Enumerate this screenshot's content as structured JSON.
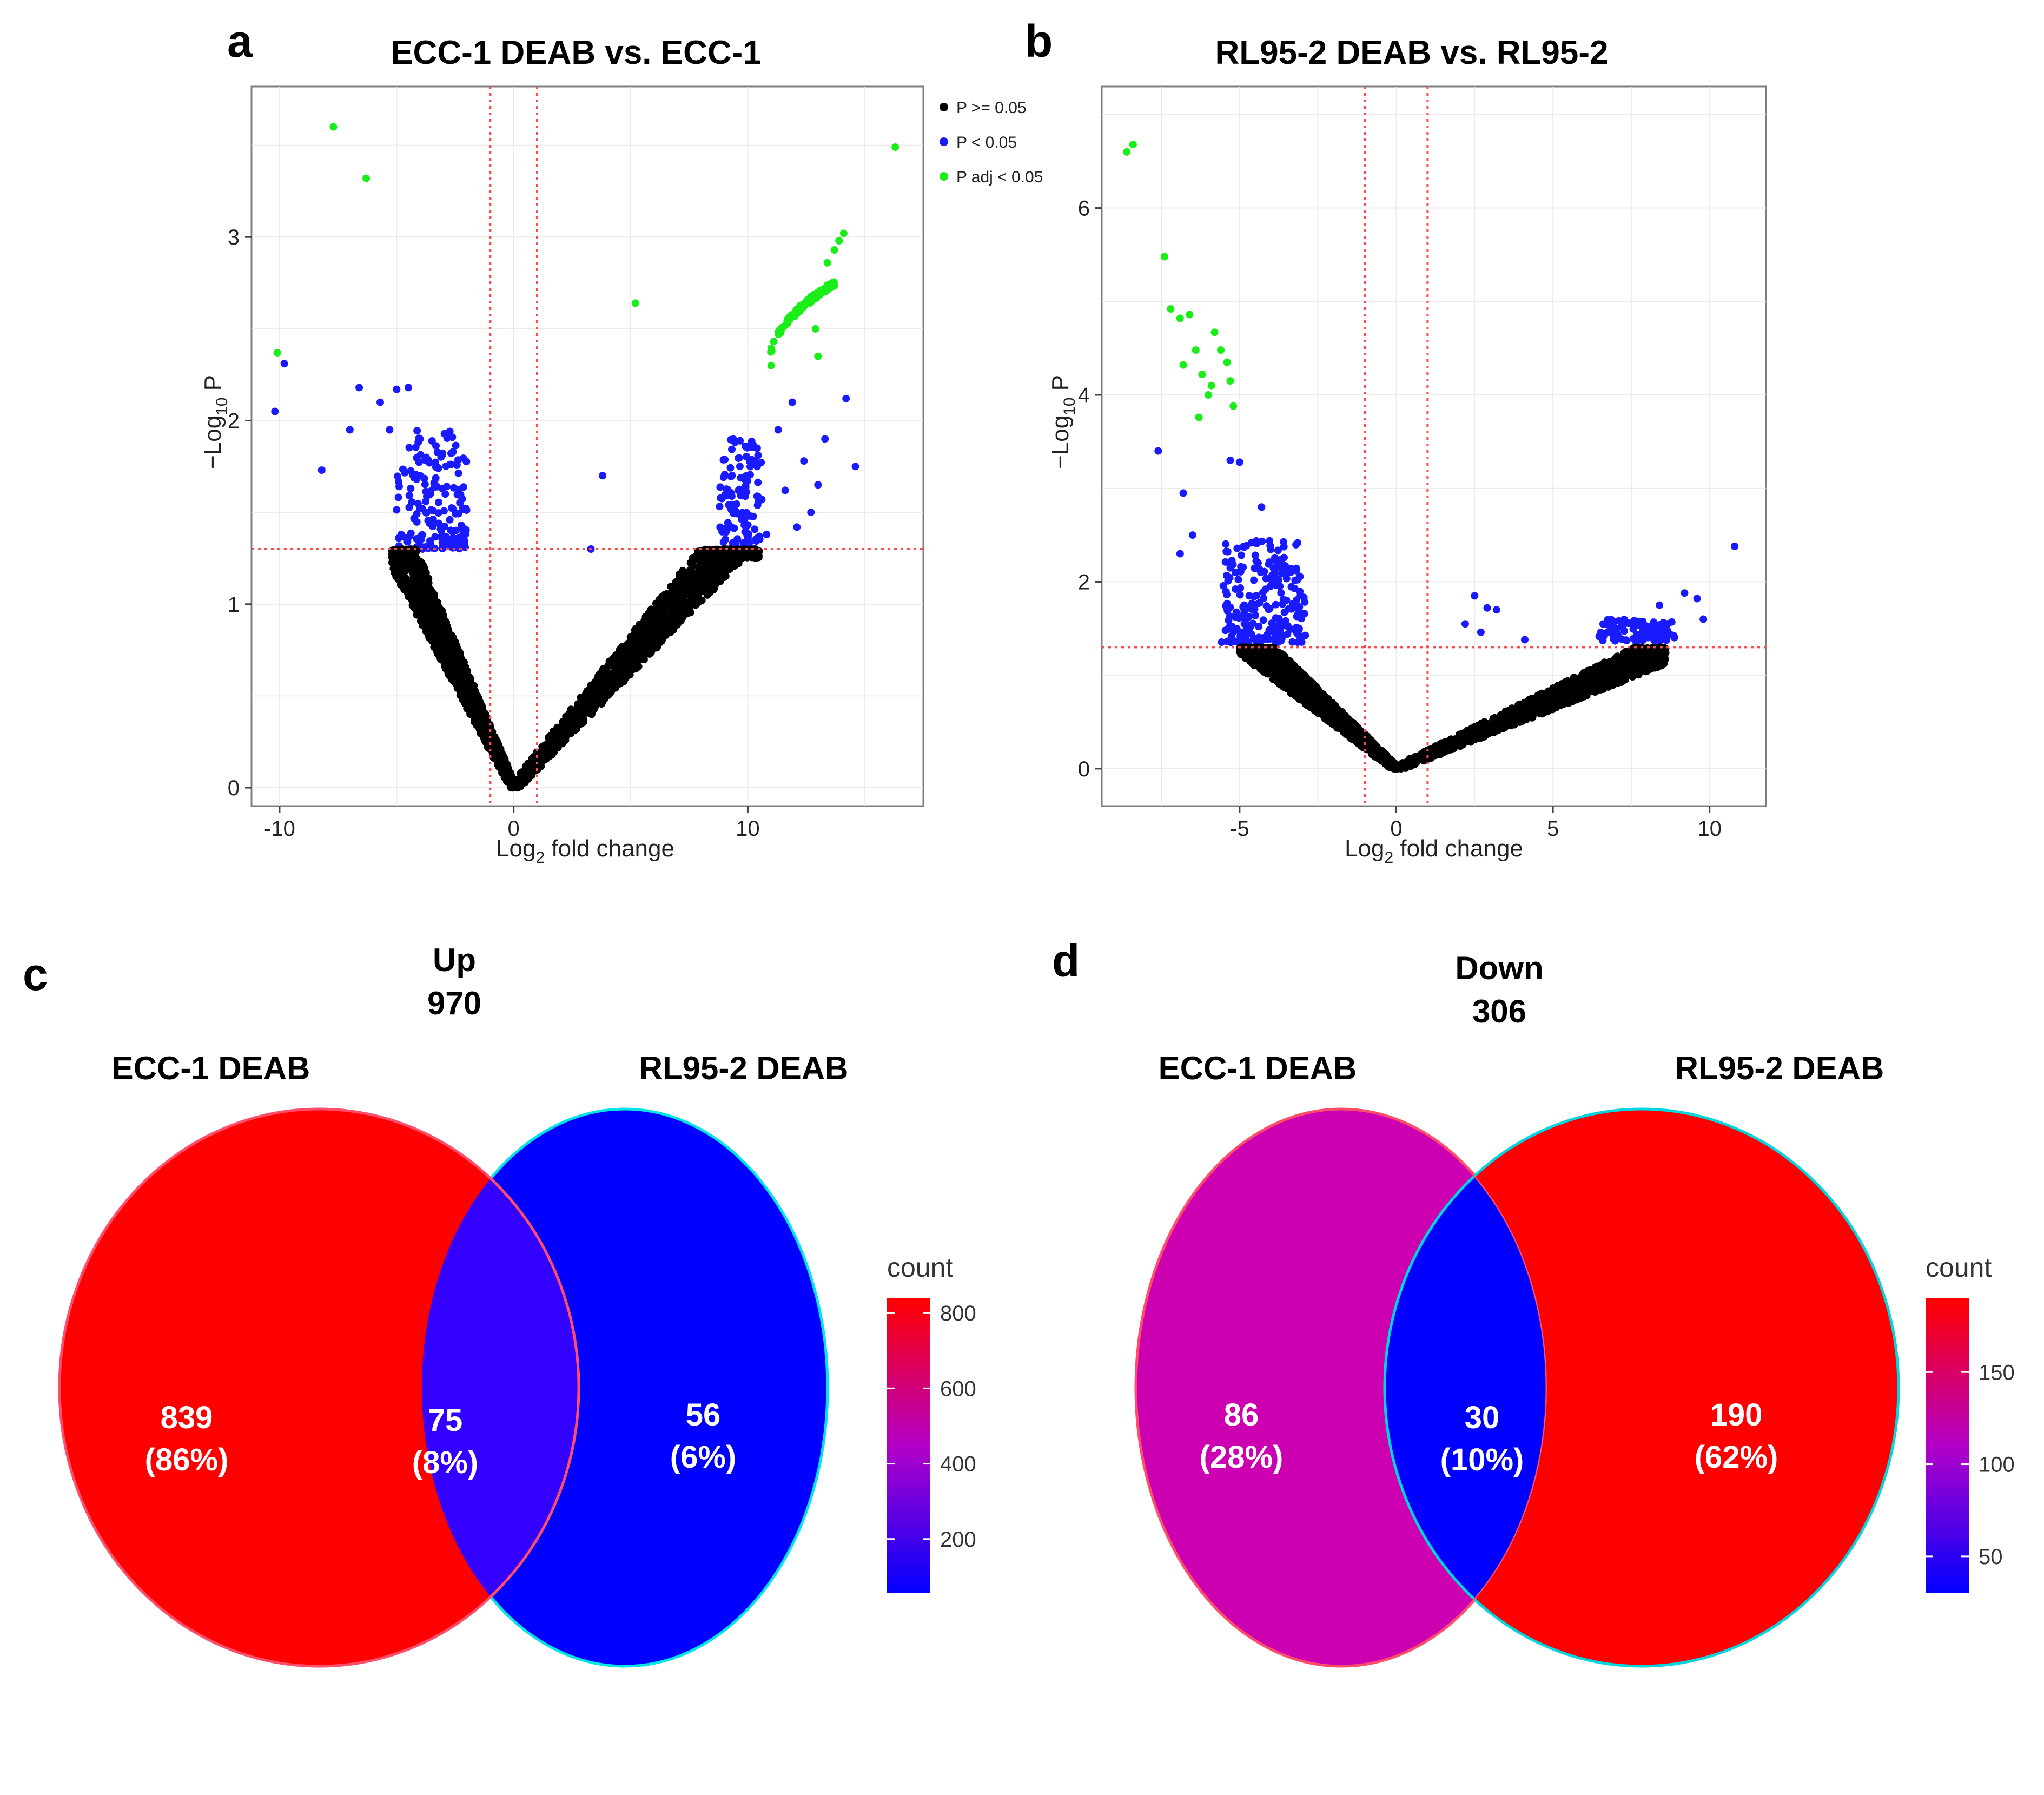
{
  "chart_data": [
    {
      "type": "scatter",
      "panel": "a",
      "title": "ECC-1 DEAB vs. ECC-1",
      "xlabel_main": "Log",
      "xlabel_sub": "2",
      "xlabel_rest": " fold change",
      "ylabel_main": "−Log",
      "ylabel_sub": "10",
      "ylabel_rest": " P",
      "xlim": [
        -11.2,
        17.5
      ],
      "ylim": [
        -0.1,
        3.82
      ],
      "xticks": [
        -10,
        0,
        10
      ],
      "yticks": [
        0,
        1,
        2,
        3
      ],
      "xtick_labels": [
        "-10",
        "0",
        "10"
      ],
      "ytick_labels": [
        "0",
        "1",
        "2",
        "3"
      ],
      "vlines": [
        -1,
        1
      ],
      "hline": 1.3,
      "legend": [
        {
          "label": "P >= 0.05",
          "color": "#000000"
        },
        {
          "label": "P < 0.05",
          "color": "#1a1aff"
        },
        {
          "label": "P adj < 0.05",
          "color": "#19ee19"
        }
      ],
      "points_sig_adj": [
        [
          -7.7,
          3.6
        ],
        [
          -6.3,
          3.32
        ],
        [
          -10.1,
          2.37
        ],
        [
          5.2,
          2.64
        ],
        [
          16.3,
          3.49
        ],
        [
          14.1,
          3.02
        ],
        [
          13.9,
          2.98
        ],
        [
          13.7,
          2.93
        ],
        [
          13.4,
          2.86
        ],
        [
          12.9,
          2.5
        ],
        [
          13.0,
          2.35
        ],
        [
          11.0,
          2.3
        ]
      ],
      "points_sig": [
        [
          -9.8,
          2.31
        ],
        [
          -10.2,
          2.05
        ],
        [
          -6.6,
          2.18
        ],
        [
          -5.7,
          2.1
        ],
        [
          -5.0,
          2.17
        ],
        [
          -4.5,
          2.18
        ],
        [
          -8.2,
          1.73
        ],
        [
          -5.3,
          1.95
        ],
        [
          -7.0,
          1.95
        ],
        [
          -4.0,
          1.9
        ],
        [
          -3.6,
          1.77
        ],
        [
          -4.4,
          1.63
        ],
        [
          -3.9,
          1.52
        ],
        [
          -3.2,
          1.44
        ],
        [
          -2.8,
          1.35
        ],
        [
          -4.8,
          1.38
        ],
        [
          -3.4,
          1.66
        ],
        [
          -2.6,
          1.52
        ],
        [
          3.8,
          1.7
        ],
        [
          3.3,
          1.3
        ],
        [
          9.9,
          1.86
        ],
        [
          10.4,
          1.75
        ],
        [
          9.6,
          1.62
        ],
        [
          10.1,
          1.48
        ],
        [
          9.3,
          1.42
        ],
        [
          10.6,
          1.57
        ],
        [
          11.3,
          1.95
        ],
        [
          11.9,
          2.1
        ],
        [
          12.4,
          1.78
        ],
        [
          13.0,
          1.65
        ],
        [
          13.3,
          1.9
        ],
        [
          14.2,
          2.12
        ],
        [
          14.6,
          1.75
        ],
        [
          12.7,
          1.5
        ],
        [
          11.6,
          1.62
        ],
        [
          12.1,
          1.42
        ],
        [
          10.8,
          1.38
        ]
      ],
      "clusters": [
        {
          "kind": "curve",
          "color": "#19ee19",
          "x0": 10.9,
          "x1": 13.7,
          "y0": 2.3,
          "y1": 2.75,
          "n": 120,
          "jitter": 0.03
        },
        {
          "kind": "band",
          "color": "#1a1aff",
          "x0": -5.0,
          "x1": -2.0,
          "ymin": 1.3,
          "ymax": 1.95,
          "n": 160
        },
        {
          "kind": "band",
          "color": "#1a1aff",
          "x0": 8.8,
          "x1": 10.6,
          "ymin": 1.3,
          "ymax": 1.9,
          "n": 110
        },
        {
          "kind": "v-left",
          "color": "#000000",
          "x0": -5.2,
          "slope": 0.27,
          "n": 1300,
          "jitter": 0.17,
          "ymax": 1.3
        },
        {
          "kind": "v-right",
          "color": "#000000",
          "x1": 10.5,
          "slope": 0.145,
          "n": 1300,
          "jitter": 0.15,
          "ymax": 1.3
        }
      ]
    },
    {
      "type": "scatter",
      "panel": "b",
      "title": "RL95-2 DEAB vs. RL95-2",
      "xlabel_main": "Log",
      "xlabel_sub": "2",
      "xlabel_rest": " fold change",
      "ylabel_main": "−Log",
      "ylabel_sub": "10",
      "ylabel_rest": " P",
      "xlim": [
        -9.4,
        11.8
      ],
      "ylim": [
        -0.4,
        7.3
      ],
      "xticks": [
        -5,
        0,
        5,
        10
      ],
      "yticks": [
        0,
        2,
        4,
        6
      ],
      "xtick_labels": [
        "-5",
        "0",
        "5",
        "10"
      ],
      "ytick_labels": [
        "0",
        "2",
        "4",
        "6"
      ],
      "vlines": [
        -1,
        1
      ],
      "hline": 1.3,
      "points_sig_adj": [
        [
          -8.6,
          6.6
        ],
        [
          -8.4,
          6.68
        ],
        [
          -7.4,
          5.48
        ],
        [
          -7.2,
          4.92
        ],
        [
          -6.9,
          4.82
        ],
        [
          -6.6,
          4.86
        ],
        [
          -6.4,
          4.48
        ],
        [
          -6.2,
          4.22
        ],
        [
          -6.0,
          4.0
        ],
        [
          -5.8,
          4.67
        ],
        [
          -5.6,
          4.48
        ],
        [
          -5.4,
          4.35
        ],
        [
          -5.3,
          4.15
        ],
        [
          -5.2,
          3.88
        ],
        [
          -6.8,
          4.32
        ],
        [
          -6.3,
          3.76
        ],
        [
          -5.9,
          4.1
        ]
      ],
      "points_sig": [
        [
          -7.6,
          3.4
        ],
        [
          -6.8,
          2.95
        ],
        [
          -5.3,
          3.3
        ],
        [
          -5.0,
          3.28
        ],
        [
          -6.5,
          2.5
        ],
        [
          -6.9,
          2.3
        ],
        [
          -4.3,
          2.8
        ],
        [
          -3.8,
          2.2
        ],
        [
          -3.1,
          1.5
        ],
        [
          2.5,
          1.85
        ],
        [
          2.9,
          1.72
        ],
        [
          3.2,
          1.7
        ],
        [
          2.7,
          1.46
        ],
        [
          2.2,
          1.55
        ],
        [
          4.1,
          1.38
        ],
        [
          9.2,
          1.88
        ],
        [
          9.6,
          1.82
        ],
        [
          8.4,
          1.75
        ],
        [
          10.8,
          2.38
        ],
        [
          9.8,
          1.6
        ],
        [
          7.6,
          1.52
        ]
      ],
      "clusters": [
        {
          "kind": "band",
          "color": "#1a1aff",
          "x0": -5.6,
          "x1": -2.9,
          "ymin": 1.35,
          "ymax": 2.45,
          "n": 230
        },
        {
          "kind": "band",
          "color": "#1a1aff",
          "x0": 6.4,
          "x1": 8.9,
          "ymin": 1.36,
          "ymax": 1.6,
          "n": 90
        },
        {
          "kind": "v-left",
          "color": "#000000",
          "x0": -5.0,
          "slope": 0.29,
          "n": 1400,
          "jitter": 0.18,
          "ymax": 1.3
        },
        {
          "kind": "v-right",
          "color": "#000000",
          "x1": 8.6,
          "slope": 0.15,
          "n": 1200,
          "jitter": 0.14,
          "ymax": 1.3
        }
      ]
    },
    {
      "type": "venn",
      "panel": "c",
      "heading": "Up",
      "total": "970",
      "sets": [
        "ECC-1 DEAB",
        "RL95-2 DEAB"
      ],
      "regions": [
        {
          "name": "left-only",
          "count": "839",
          "percent": "(86%)",
          "value": 839,
          "color": "#fe0000"
        },
        {
          "name": "overlap",
          "count": "75",
          "percent": "(8%)",
          "value": 75,
          "color": "#3300ff"
        },
        {
          "name": "right-only",
          "count": "56",
          "percent": "(6%)",
          "value": 56,
          "color": "#0000fe"
        }
      ],
      "colorbar": {
        "title": "count",
        "range": [
          56,
          839
        ],
        "ticks": [
          200,
          400,
          600,
          800
        ],
        "tick_labels": [
          "200",
          "400",
          "600",
          "800"
        ]
      }
    },
    {
      "type": "venn",
      "panel": "d",
      "heading": "Down",
      "total": "306",
      "sets": [
        "ECC-1 DEAB",
        "RL95-2 DEAB"
      ],
      "regions": [
        {
          "name": "left-only",
          "count": "86",
          "percent": "(28%)",
          "value": 86,
          "color": "#cc00b0"
        },
        {
          "name": "overlap",
          "count": "30",
          "percent": "(10%)",
          "value": 30,
          "color": "#0000fe"
        },
        {
          "name": "right-only",
          "count": "190",
          "percent": "(62%)",
          "value": 190,
          "color": "#fe0000"
        }
      ],
      "colorbar": {
        "title": "count",
        "range": [
          30,
          190
        ],
        "ticks": [
          50,
          100,
          150
        ],
        "tick_labels": [
          "50",
          "100",
          "150"
        ]
      }
    }
  ]
}
